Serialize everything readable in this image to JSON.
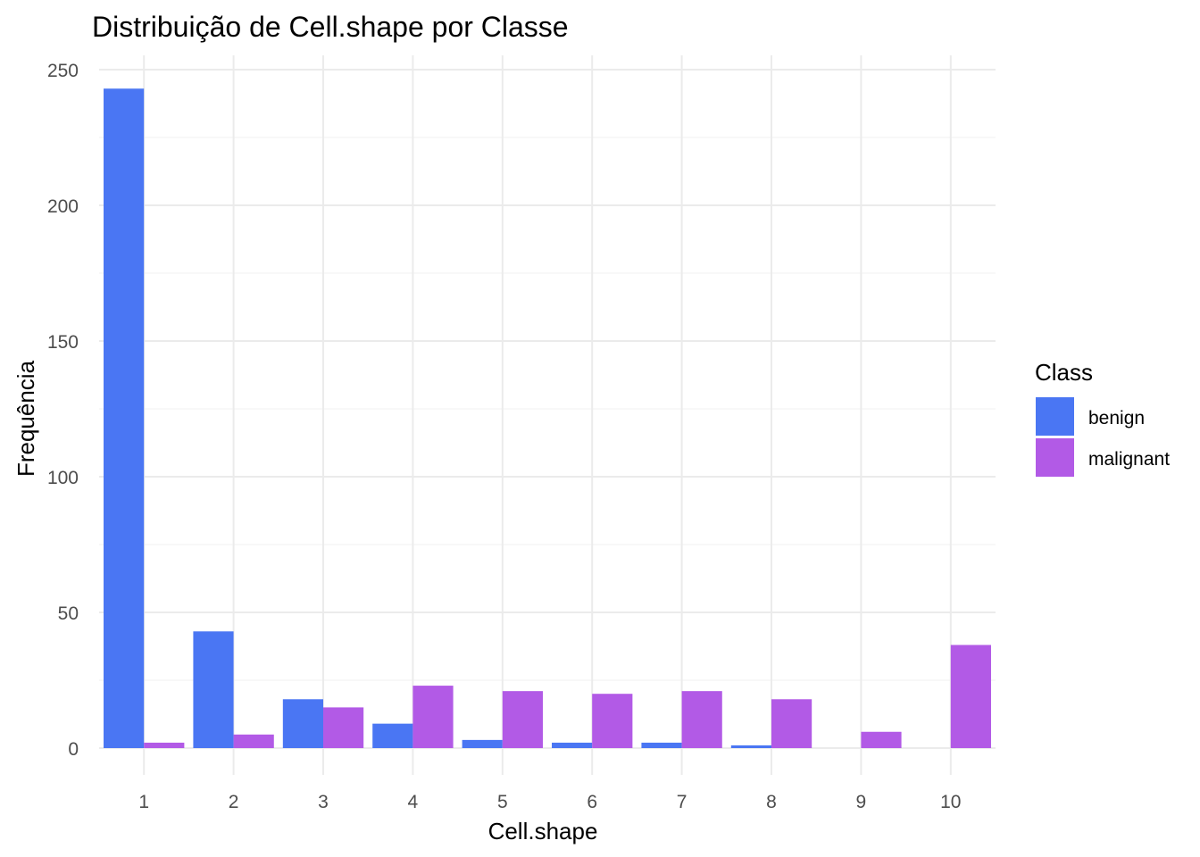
{
  "chart_data": {
    "type": "bar",
    "title": "Distribuição de Cell.shape por Classe",
    "xlabel": "Cell.shape",
    "ylabel": "Frequência",
    "categories": [
      "1",
      "2",
      "3",
      "4",
      "5",
      "6",
      "7",
      "8",
      "9",
      "10"
    ],
    "series": [
      {
        "name": "benign",
        "color": "#4a76f3",
        "values": [
          243,
          43,
          18,
          9,
          3,
          2,
          2,
          1,
          0,
          0
        ]
      },
      {
        "name": "malignant",
        "color": "#b25ae6",
        "values": [
          2,
          5,
          15,
          23,
          21,
          20,
          21,
          18,
          6,
          38
        ]
      }
    ],
    "ylim": [
      0,
      250
    ],
    "yticks": [
      0,
      50,
      100,
      150,
      200,
      250
    ],
    "grid": true,
    "legend": {
      "title": "Class",
      "position": "right"
    }
  }
}
